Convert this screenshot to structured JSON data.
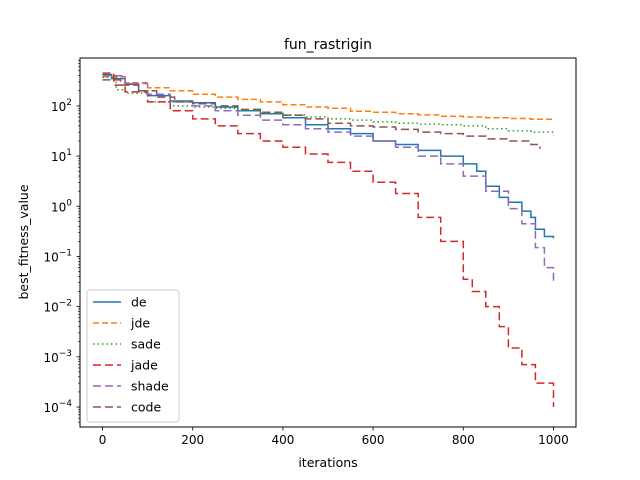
{
  "chart_data": {
    "type": "line",
    "title": "fun_rastrigin",
    "xlabel": "iterations",
    "ylabel": "best_fitness_value",
    "xlim": [
      -50,
      1050
    ],
    "ylim": [
      4e-05,
      900
    ],
    "yscale": "log",
    "grid": false,
    "legend_position": "lower-left",
    "x_ticks": [
      0,
      200,
      400,
      600,
      800,
      1000
    ],
    "x_tick_labels": [
      "0",
      "200",
      "400",
      "600",
      "800",
      "1000"
    ],
    "y_ticks": [
      0.0001,
      0.001,
      0.01,
      0.1,
      1,
      10,
      100
    ],
    "y_tick_labels": [
      {
        "base": "10",
        "exp": "−4"
      },
      {
        "base": "10",
        "exp": "−3"
      },
      {
        "base": "10",
        "exp": "−2"
      },
      {
        "base": "10",
        "exp": "−1"
      },
      {
        "base": "10",
        "exp": "0"
      },
      {
        "base": "10",
        "exp": "1"
      },
      {
        "base": "10",
        "exp": "2"
      }
    ],
    "series": [
      {
        "name": "de",
        "color": "#1f77b4",
        "dash": "solid",
        "x": [
          0,
          20,
          50,
          80,
          100,
          150,
          200,
          250,
          300,
          350,
          400,
          450,
          500,
          550,
          600,
          650,
          700,
          750,
          800,
          830,
          850,
          880,
          900,
          930,
          950,
          960,
          980,
          1000
        ],
        "y": [
          420,
          350,
          270,
          200,
          160,
          125,
          115,
          95,
          80,
          70,
          58,
          42,
          35,
          28,
          20,
          17,
          13,
          10,
          7,
          5,
          2.5,
          1.5,
          1.2,
          0.8,
          0.6,
          0.35,
          0.25,
          0.23
        ]
      },
      {
        "name": "jde",
        "color": "#ff7f0e",
        "dash": "dashed",
        "x": [
          0,
          50,
          100,
          150,
          200,
          250,
          300,
          350,
          400,
          450,
          500,
          550,
          600,
          650,
          700,
          750,
          800,
          850,
          900,
          950,
          1000
        ],
        "y": [
          380,
          290,
          230,
          200,
          170,
          150,
          135,
          120,
          105,
          95,
          90,
          78,
          75,
          70,
          66,
          62,
          60,
          58,
          56,
          54,
          52
        ]
      },
      {
        "name": "sade",
        "color": "#2ca02c",
        "dash": "dotted",
        "x": [
          0,
          30,
          50,
          100,
          150,
          200,
          250,
          300,
          350,
          400,
          450,
          500,
          550,
          600,
          650,
          700,
          750,
          800,
          850,
          900,
          950,
          1000
        ],
        "y": [
          370,
          210,
          180,
          120,
          100,
          95,
          90,
          80,
          72,
          66,
          60,
          55,
          52,
          48,
          45,
          43,
          42,
          40,
          35,
          32,
          30,
          26
        ]
      },
      {
        "name": "jade",
        "color": "#d62728",
        "dash": "longdash",
        "x": [
          0,
          25,
          50,
          100,
          150,
          200,
          250,
          300,
          350,
          400,
          450,
          500,
          550,
          600,
          650,
          700,
          750,
          800,
          820,
          850,
          880,
          900,
          930,
          960,
          1000
        ],
        "y": [
          450,
          260,
          190,
          120,
          80,
          55,
          40,
          28,
          20,
          15,
          11,
          7.5,
          5,
          3,
          1.8,
          0.6,
          0.2,
          0.035,
          0.02,
          0.01,
          0.004,
          0.0015,
          0.0007,
          0.0003,
          0.0001
        ]
      },
      {
        "name": "shade",
        "color": "#9467bd",
        "dash": "longdash",
        "x": [
          0,
          50,
          100,
          150,
          200,
          250,
          300,
          350,
          400,
          450,
          500,
          550,
          600,
          650,
          700,
          750,
          800,
          850,
          900,
          930,
          960,
          980,
          1000
        ],
        "y": [
          400,
          280,
          170,
          120,
          100,
          80,
          65,
          52,
          42,
          35,
          30,
          25,
          20,
          15,
          10,
          7,
          4,
          2,
          0.9,
          0.45,
          0.15,
          0.06,
          0.032
        ]
      },
      {
        "name": "code",
        "color": "#8c564b",
        "dash": "longdash",
        "x": [
          0,
          40,
          80,
          120,
          160,
          200,
          250,
          300,
          350,
          400,
          450,
          500,
          550,
          600,
          650,
          700,
          750,
          800,
          850,
          900,
          950,
          970
        ],
        "y": [
          330,
          260,
          200,
          150,
          120,
          110,
          100,
          85,
          75,
          65,
          55,
          45,
          40,
          38,
          34,
          30,
          28,
          25,
          22,
          20,
          17,
          14
        ]
      }
    ]
  }
}
